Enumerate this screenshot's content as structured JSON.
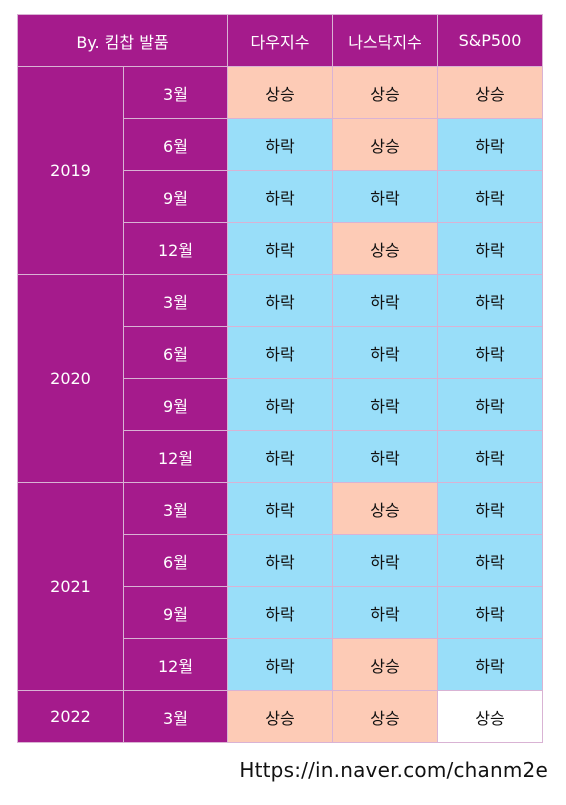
{
  "table": {
    "header": {
      "credit": "By. 킴찹 발품",
      "columns": [
        "다우지수",
        "나스닥지수",
        "S&P500"
      ]
    },
    "groups": [
      {
        "year": "2019",
        "rows": [
          {
            "month": "3월",
            "values": [
              "상승",
              "상승",
              "상승"
            ],
            "styles": [
              "up",
              "up",
              "up"
            ]
          },
          {
            "month": "6월",
            "values": [
              "하락",
              "상승",
              "하락"
            ],
            "styles": [
              "down",
              "up",
              "down"
            ]
          },
          {
            "month": "9월",
            "values": [
              "하락",
              "하락",
              "하락"
            ],
            "styles": [
              "down",
              "down",
              "down"
            ]
          },
          {
            "month": "12월",
            "values": [
              "하락",
              "상승",
              "하락"
            ],
            "styles": [
              "down",
              "up",
              "down"
            ]
          }
        ]
      },
      {
        "year": "2020",
        "rows": [
          {
            "month": "3월",
            "values": [
              "하락",
              "하락",
              "하락"
            ],
            "styles": [
              "down",
              "down",
              "down"
            ]
          },
          {
            "month": "6월",
            "values": [
              "하락",
              "하락",
              "하락"
            ],
            "styles": [
              "down",
              "down",
              "down"
            ]
          },
          {
            "month": "9월",
            "values": [
              "하락",
              "하락",
              "하락"
            ],
            "styles": [
              "down",
              "down",
              "down"
            ]
          },
          {
            "month": "12월",
            "values": [
              "하락",
              "하락",
              "하락"
            ],
            "styles": [
              "down",
              "down",
              "down"
            ]
          }
        ]
      },
      {
        "year": "2021",
        "rows": [
          {
            "month": "3월",
            "values": [
              "하락",
              "상승",
              "하락"
            ],
            "styles": [
              "down",
              "up",
              "down"
            ]
          },
          {
            "month": "6월",
            "values": [
              "하락",
              "하락",
              "하락"
            ],
            "styles": [
              "down",
              "down",
              "down"
            ]
          },
          {
            "month": "9월",
            "values": [
              "하락",
              "하락",
              "하락"
            ],
            "styles": [
              "down",
              "down",
              "down"
            ]
          },
          {
            "month": "12월",
            "values": [
              "하락",
              "상승",
              "하락"
            ],
            "styles": [
              "down",
              "up",
              "down"
            ]
          }
        ]
      },
      {
        "year": "2022",
        "rows": [
          {
            "month": "3월",
            "values": [
              "상승",
              "상승",
              "상승"
            ],
            "styles": [
              "up",
              "up",
              "plain"
            ]
          }
        ]
      }
    ]
  },
  "colors": {
    "header_bg": "#a51b8c",
    "up_bg": "#fdcbb6",
    "down_bg": "#99def9",
    "plain_bg": "#ffffff"
  },
  "watermark": "Https://in.naver.com/chanm2e"
}
